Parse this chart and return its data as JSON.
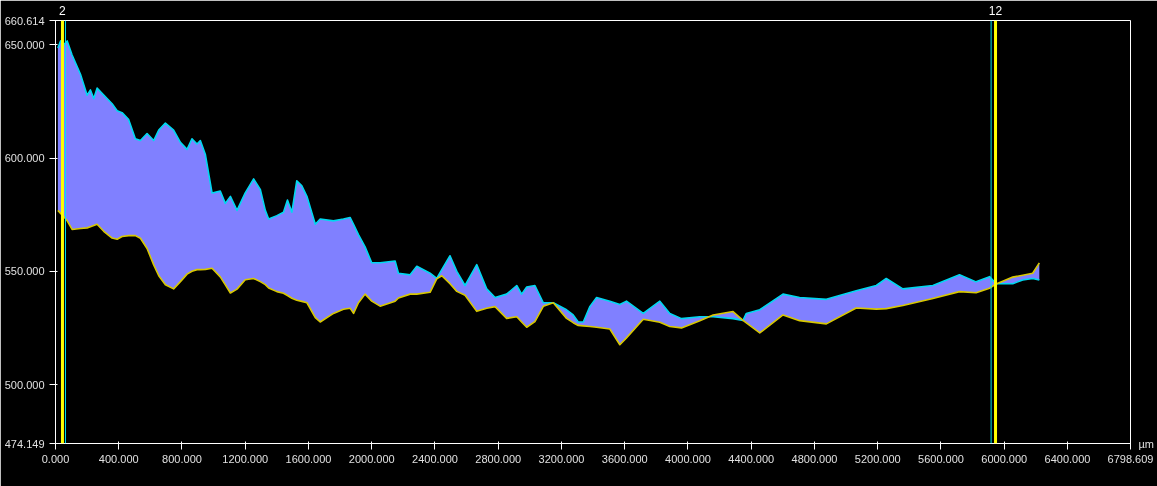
{
  "chart_data": {
    "type": "line",
    "xlabel": "µm",
    "xlim": [
      0,
      6798.609
    ],
    "ylim": [
      474.149,
      660.614
    ],
    "xticks": [
      {
        "value": 0,
        "label": "0.000"
      },
      {
        "value": 400,
        "label": "400.000"
      },
      {
        "value": 800,
        "label": "800.000"
      },
      {
        "value": 1200,
        "label": "1200.000"
      },
      {
        "value": 1600,
        "label": "1600.000"
      },
      {
        "value": 2000,
        "label": "2000.000"
      },
      {
        "value": 2400,
        "label": "2400.000"
      },
      {
        "value": 2800,
        "label": "2800.000"
      },
      {
        "value": 3200,
        "label": "3200.000"
      },
      {
        "value": 3600,
        "label": "3600.000"
      },
      {
        "value": 4000,
        "label": "4000.000"
      },
      {
        "value": 4400,
        "label": "4400.000"
      },
      {
        "value": 4800,
        "label": "4800.000"
      },
      {
        "value": 5200,
        "label": "5200.000"
      },
      {
        "value": 5600,
        "label": "5600.000"
      },
      {
        "value": 6000,
        "label": "6000.000"
      },
      {
        "value": 6400,
        "label": "6400.000"
      },
      6798.609
    ],
    "yticks": [
      474.149,
      {
        "value": 500,
        "label": "500.000"
      },
      {
        "value": 550,
        "label": "550.000"
      },
      {
        "value": 600,
        "label": "600.000"
      },
      {
        "value": 650,
        "label": "650.000"
      },
      660.614
    ],
    "grid": false,
    "marker": "none",
    "line_style": "solid",
    "annotations": [
      "2",
      "12"
    ],
    "x": [
      15,
      32,
      53,
      74,
      105,
      158,
      200,
      221,
      242,
      263,
      305,
      358,
      390,
      421,
      463,
      505,
      537,
      579,
      621,
      653,
      695,
      747,
      790,
      832,
      863,
      895,
      916,
      948,
      990,
      1042,
      1074,
      1106,
      1148,
      1200,
      1253,
      1295,
      1327,
      1348,
      1400,
      1442,
      1467,
      1495,
      1526,
      1558,
      1590,
      1643,
      1674,
      1758,
      1821,
      1863,
      1885,
      1916,
      1958,
      2000,
      2053,
      2148,
      2169,
      2243,
      2285,
      2369,
      2411,
      2443,
      2495,
      2538,
      2590,
      2664,
      2727,
      2780,
      2853,
      2917,
      2948,
      2980,
      3032,
      3085,
      3148,
      3232,
      3274,
      3306,
      3338,
      3380,
      3422,
      3506,
      3569,
      3611,
      3717,
      3822,
      3885,
      3959,
      4075,
      4159,
      4285,
      4348,
      4369,
      4454,
      4601,
      4706,
      4875,
      5064,
      5191,
      5254,
      5359,
      5549,
      5717,
      5822,
      5907,
      5949,
      6054,
      6117,
      6180,
      6222
    ],
    "series": [
      {
        "color": "#00d8f0",
        "values": [
          648.5,
          651.6,
          650.0,
          651.6,
          645.4,
          636.9,
          627.7,
          630.0,
          626.2,
          630.8,
          627.7,
          623.9,
          620.8,
          620.0,
          616.9,
          608.5,
          607.7,
          610.8,
          607.7,
          612.3,
          615.4,
          612.3,
          606.9,
          603.8,
          608.5,
          606.2,
          607.7,
          601.5,
          584.6,
          585.4,
          580.0,
          583.1,
          576.9,
          584.6,
          590.8,
          586.2,
          576.9,
          573.1,
          574.6,
          576.1,
          581.5,
          576.1,
          590.0,
          587.7,
          583.1,
          570.8,
          573.1,
          572.3,
          573.1,
          573.8,
          570.8,
          566.2,
          560.8,
          553.8,
          553.8,
          554.6,
          549.2,
          548.5,
          552.3,
          549.2,
          546.9,
          550.8,
          556.9,
          550.0,
          543.8,
          553.0,
          542.3,
          538.5,
          540.0,
          543.8,
          540.0,
          543.1,
          543.8,
          536.2,
          536.2,
          533.1,
          530.8,
          527.7,
          527.7,
          534.6,
          538.5,
          536.9,
          535.4,
          536.9,
          531.5,
          536.9,
          531.5,
          529.2,
          530.0,
          530.0,
          529.2,
          528.4,
          531.5,
          533.1,
          540.0,
          538.5,
          537.7,
          541.5,
          543.8,
          546.9,
          542.3,
          543.8,
          548.5,
          545.4,
          547.7,
          544.6,
          544.6,
          546.2,
          546.9,
          546.2
        ],
        "lower": [
          576.9,
          575.6,
          574.1,
          572.3,
          568.5,
          568.9,
          569.2,
          569.7,
          570.2,
          570.8,
          567.7,
          564.7,
          564.2,
          565.4,
          565.8,
          565.8,
          564.6,
          560.1,
          552.9,
          548.1,
          544.1,
          542.3,
          545.5,
          548.8,
          550.1,
          550.8,
          550.8,
          550.9,
          551.4,
          547.6,
          544.1,
          540.5,
          542.2,
          546.3,
          546.9,
          545.5,
          544.2,
          542.7,
          541.1,
          540.4,
          539.4,
          538.2,
          537.3,
          536.8,
          536.2,
          529.6,
          527.7,
          531.5,
          533.3,
          533.8,
          531.5,
          536.2,
          540.0,
          536.9,
          534.7,
          536.9,
          538.3,
          540.0,
          540.0,
          540.8,
          546.7,
          548.1,
          544.6,
          541.2,
          539.5,
          532.4,
          533.8,
          534.5,
          529.3,
          530.0,
          527.7,
          525.4,
          527.9,
          534.6,
          536.2,
          529.3,
          527.4,
          526.2,
          526.0,
          525.7,
          525.4,
          524.6,
          517.7,
          520.7,
          528.9,
          527.6,
          525.7,
          525.1,
          528.3,
          530.8,
          532.3,
          528.4,
          527.3,
          522.9,
          530.8,
          528.3,
          526.9,
          533.9,
          533.4,
          533.6,
          535.0,
          538.1,
          541.1,
          540.6,
          542.6,
          544.5,
          547.5,
          548.3,
          549.2,
          553.8
        ],
        "upper": [
          648.5,
          651.6,
          650.0,
          651.6,
          645.4,
          636.9,
          627.7,
          630.0,
          626.2,
          630.8,
          627.7,
          623.9,
          620.8,
          620.0,
          616.9,
          608.5,
          607.7,
          610.8,
          607.7,
          612.3,
          615.4,
          612.3,
          606.9,
          603.8,
          608.5,
          606.2,
          607.7,
          601.5,
          584.6,
          585.4,
          580.0,
          583.1,
          576.9,
          584.6,
          590.8,
          586.2,
          576.9,
          573.1,
          574.6,
          576.1,
          581.5,
          576.1,
          590.0,
          587.7,
          583.1,
          570.8,
          573.1,
          572.3,
          573.1,
          573.8,
          570.8,
          566.2,
          560.8,
          553.8,
          553.8,
          554.6,
          549.2,
          548.5,
          552.3,
          549.2,
          546.9,
          550.8,
          556.9,
          550.0,
          543.8,
          553.0,
          542.3,
          538.5,
          540.0,
          543.8,
          540.0,
          543.1,
          543.8,
          536.2,
          536.2,
          533.1,
          530.8,
          527.7,
          527.7,
          534.6,
          538.5,
          536.9,
          535.4,
          536.9,
          531.5,
          536.9,
          531.5,
          529.2,
          530.0,
          530.0,
          529.2,
          528.4,
          531.5,
          533.1,
          540.0,
          538.5,
          537.7,
          541.5,
          543.8,
          546.9,
          542.3,
          543.8,
          548.5,
          545.4,
          547.7,
          544.6,
          544.6,
          546.2,
          546.9,
          546.2
        ]
      },
      {
        "color": "#d8c800",
        "values": [
          576.9,
          575.6,
          574.1,
          572.3,
          568.5,
          568.9,
          569.2,
          569.7,
          570.2,
          570.8,
          567.7,
          564.7,
          564.2,
          565.4,
          565.8,
          565.8,
          564.6,
          560.1,
          552.9,
          548.1,
          544.1,
          542.3,
          545.5,
          548.8,
          550.1,
          550.8,
          550.8,
          550.9,
          551.4,
          547.6,
          544.1,
          540.5,
          542.2,
          546.3,
          546.9,
          545.5,
          544.2,
          542.7,
          541.1,
          540.4,
          539.4,
          538.2,
          537.3,
          536.8,
          536.2,
          529.6,
          527.7,
          531.5,
          533.3,
          533.8,
          531.5,
          536.2,
          540.0,
          536.9,
          534.7,
          536.9,
          538.3,
          540.0,
          540.0,
          540.8,
          546.7,
          548.1,
          544.6,
          541.2,
          539.5,
          532.4,
          533.8,
          534.5,
          529.3,
          530.0,
          527.7,
          525.4,
          527.9,
          534.6,
          536.2,
          529.3,
          527.4,
          526.2,
          526.0,
          525.7,
          525.4,
          524.6,
          517.7,
          520.7,
          528.9,
          527.6,
          525.7,
          525.1,
          528.3,
          530.8,
          532.3,
          528.4,
          527.3,
          522.9,
          530.8,
          528.3,
          526.9,
          533.9,
          533.4,
          533.6,
          535.0,
          538.1,
          541.1,
          540.6,
          542.6,
          544.5,
          547.5,
          548.3,
          549.2,
          553.8
        ]
      }
    ],
    "ref_lines": [
      {
        "axis": "x",
        "value": 44,
        "color": "#ffff00"
      },
      {
        "axis": "x",
        "value": 63,
        "color": "#00e5ee"
      },
      {
        "axis": "x",
        "value": 5917,
        "color": "#00e5ee"
      },
      {
        "axis": "x",
        "value": 5945,
        "color": "#ffff00"
      }
    ]
  }
}
